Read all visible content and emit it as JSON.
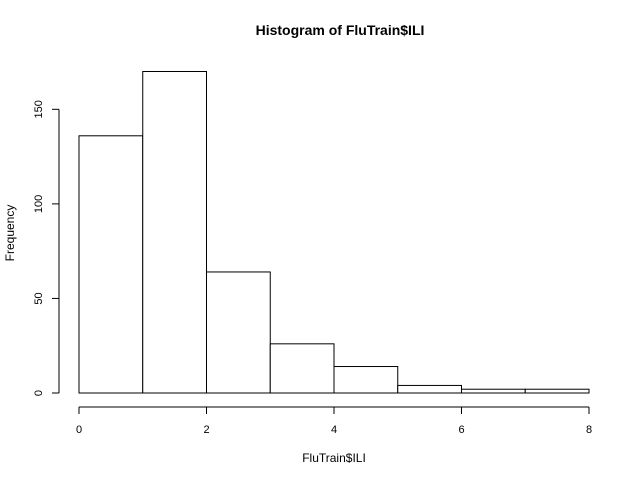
{
  "chart_data": {
    "type": "bar",
    "title": "Histogram of FluTrain$ILI",
    "xlabel": "FluTrain$ILI",
    "ylabel": "Frequency",
    "bins": [
      [
        0,
        1
      ],
      [
        1,
        2
      ],
      [
        2,
        3
      ],
      [
        3,
        4
      ],
      [
        4,
        5
      ],
      [
        5,
        6
      ],
      [
        6,
        7
      ],
      [
        7,
        8
      ]
    ],
    "values": [
      136,
      170,
      64,
      26,
      14,
      4,
      2,
      2
    ],
    "xlim": [
      0,
      8
    ],
    "ylim": [
      0,
      170
    ],
    "xticks": [
      0,
      2,
      4,
      6,
      8
    ],
    "yticks": [
      0,
      50,
      100,
      150
    ],
    "grid": false,
    "bar_fill": "#ffffff",
    "bar_stroke": "#000000"
  }
}
